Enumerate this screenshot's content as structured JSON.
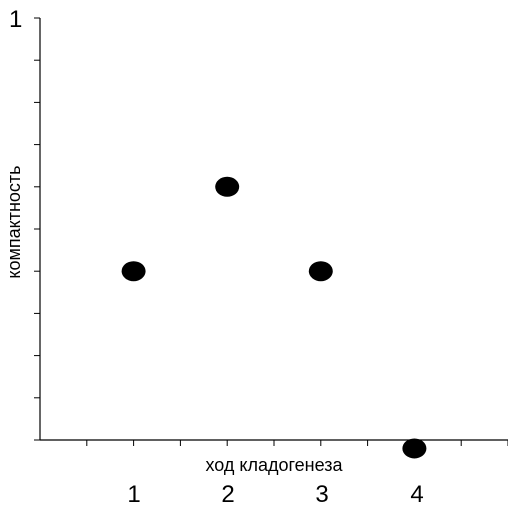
{
  "chart_data": {
    "type": "scatter",
    "title": "",
    "xlabel": "ход кладогенеза",
    "ylabel": "компактность",
    "x_tick_labels": [
      "1",
      "2",
      "3",
      "4"
    ],
    "y_tick_labels": [
      "1"
    ],
    "xlim": [
      0,
      5
    ],
    "ylim": [
      0,
      1
    ],
    "grid": false,
    "points": [
      {
        "x": 1,
        "y": 0.4
      },
      {
        "x": 2,
        "y": 0.6
      },
      {
        "x": 3,
        "y": 0.4
      },
      {
        "x": 4,
        "y": -0.02
      }
    ],
    "marker_color": "#000000"
  }
}
